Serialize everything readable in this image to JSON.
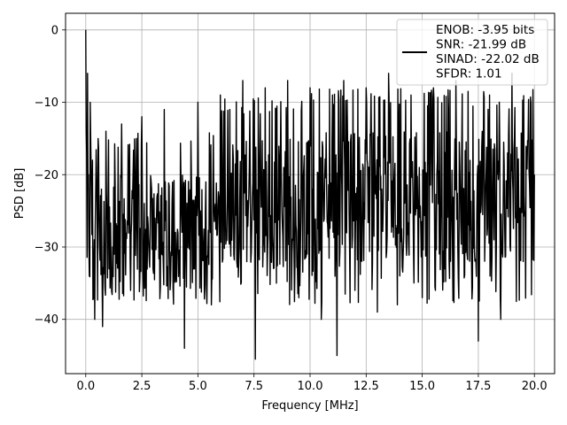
{
  "chart_data": {
    "type": "line",
    "title": "",
    "xlabel": "Frequency [MHz]",
    "ylabel": "PSD [dB]",
    "xlim": [
      -0.9,
      20.9
    ],
    "ylim": [
      -47.5,
      2.3
    ],
    "xticks": [
      0.0,
      2.5,
      5.0,
      7.5,
      10.0,
      12.5,
      15.0,
      17.5,
      20.0
    ],
    "xtick_labels": [
      "0.0",
      "2.5",
      "5.0",
      "7.5",
      "10.0",
      "12.5",
      "15.0",
      "17.5",
      "20.0"
    ],
    "yticks": [
      0,
      -10,
      -20,
      -30,
      -40
    ],
    "ytick_labels": [
      "0",
      "−10",
      "−20",
      "−30",
      "−40"
    ],
    "grid": true,
    "legend_position": "top-right",
    "legend_entries": [
      "ENOB: -3.95 bits",
      "SNR: -21.99 dB",
      "SINAD: -22.02 dB",
      "SFDR: 1.01"
    ],
    "series": [
      {
        "color": "#000000",
        "description": "noisy spectrum, 0 to 20 MHz",
        "x": [
          0.0,
          0.04,
          0.08,
          0.12,
          0.16,
          0.2,
          0.3,
          0.4,
          0.55,
          0.7,
          0.75,
          0.9,
          1.2,
          1.6,
          2.0,
          2.5,
          3.0,
          3.5,
          4.0,
          4.4,
          5.0,
          5.6,
          6.0,
          6.6,
          7.0,
          7.56,
          8.0,
          8.5,
          9.0,
          9.5,
          10.0,
          10.5,
          11.0,
          11.2,
          11.5,
          12.0,
          12.5,
          13.0,
          13.5,
          14.0,
          14.5,
          15.0,
          15.5,
          16.0,
          16.5,
          17.0,
          17.5,
          18.0,
          18.5,
          19.0,
          19.5,
          20.0
        ],
        "y": [
          0.0,
          -17.0,
          -6.0,
          -20.0,
          -34.0,
          -10.0,
          -18.0,
          -40.0,
          -15.0,
          -22.0,
          -41.0,
          -14.0,
          -30.0,
          -13.0,
          -36.0,
          -12.0,
          -33.0,
          -11.0,
          -28.0,
          -44.0,
          -10.0,
          -38.0,
          -9.0,
          -31.0,
          -7.0,
          -45.5,
          -8.0,
          -35.0,
          -7.0,
          -37.0,
          -8.0,
          -40.0,
          -9.0,
          -45.0,
          -7.0,
          -36.0,
          -8.0,
          -39.0,
          -6.0,
          -34.0,
          -9.0,
          -37.0,
          -8.0,
          -33.0,
          -7.0,
          -31.0,
          -43.0,
          -9.0,
          -40.0,
          -6.0,
          -32.0,
          -20.0
        ]
      }
    ]
  }
}
